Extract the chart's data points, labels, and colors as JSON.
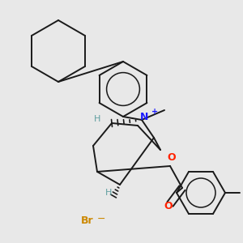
{
  "bg_color": "#e8e8e8",
  "line_color": "#1a1a1a",
  "N_color": "#1a1aff",
  "O_color": "#ff2200",
  "H_color": "#5f9ea0",
  "Br_color": "#cc8800",
  "lw": 1.4,
  "dbo": 5.0,
  "fig_w": 3.0,
  "fig_h": 3.0,
  "dpi": 100,
  "xlim": [
    0,
    300
  ],
  "ylim": [
    0,
    300
  ]
}
